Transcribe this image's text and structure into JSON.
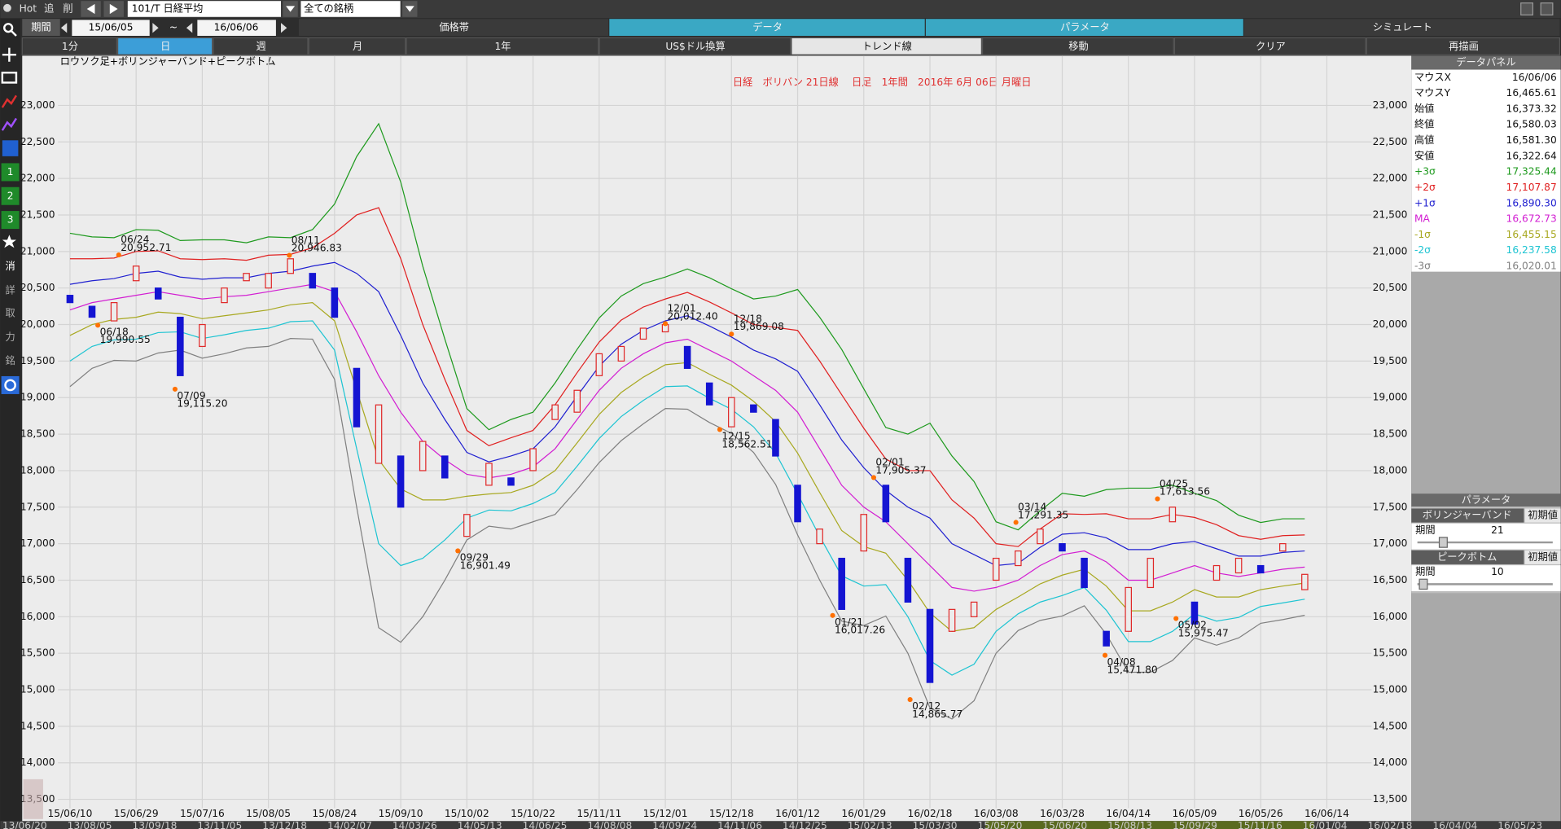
{
  "toolbar": {
    "hot": "Hot",
    "add": "追",
    "delete": "削",
    "symbol": "101/T 日経平均",
    "universe": "全ての銘柄",
    "period_label": "期間",
    "start": "15/06/05",
    "tilde": "~",
    "end": "16/06/06",
    "tabs": [
      "価格帯",
      "データ",
      "パラメータ",
      "シミュレート"
    ],
    "buttons": [
      "1分",
      "日",
      "週",
      "月",
      "1年",
      "US$ドル換算",
      "トレンド線",
      "移動",
      "クリア",
      "再描画"
    ]
  },
  "side_toolbar": [
    "1",
    "2",
    "3",
    "消",
    "詳",
    "取",
    "力",
    "銘"
  ],
  "chart_data": {
    "type": "candlestick",
    "title": "日経　ボリバン 21日線　 日足　1年間　2016年 6月 06日 月曜日",
    "subtitle": "ロウソク足+ボリンジャーバンド+ピークボトム",
    "categories": [
      "15/06/10",
      null,
      null,
      "15/06/29",
      null,
      null,
      "15/07/16",
      null,
      null,
      "15/08/05",
      null,
      null,
      "15/08/24",
      null,
      null,
      "15/09/10",
      null,
      null,
      "15/10/02",
      null,
      null,
      "15/10/22",
      null,
      null,
      "15/11/11",
      null,
      null,
      "15/12/01",
      null,
      null,
      "15/12/18",
      null,
      null,
      "16/01/12",
      null,
      null,
      "16/01/29",
      null,
      null,
      "16/02/18",
      null,
      null,
      "16/03/08",
      null,
      null,
      "16/03/28",
      null,
      null,
      "16/04/14",
      null,
      null,
      "16/05/09",
      null,
      null,
      "16/05/26",
      null,
      null,
      "16/06/14"
    ],
    "open": [
      20400,
      20250,
      20050,
      20600,
      20500,
      20100,
      19700,
      20300,
      20600,
      20500,
      20700,
      20700,
      20500,
      19400,
      18100,
      18200,
      18000,
      18200,
      17100,
      17800,
      17900,
      18000,
      18700,
      18800,
      19300,
      19500,
      19800,
      19900,
      19700,
      19200,
      18600,
      18900,
      18700,
      17800,
      17000,
      16800,
      16900,
      17800,
      16800,
      16100,
      15800,
      16000,
      16500,
      16700,
      17000,
      17000,
      16800,
      15800,
      15800,
      16400,
      17300,
      16200,
      16500,
      16600,
      16700,
      16900,
      16370,
      null
    ],
    "close": [
      20300,
      20100,
      20300,
      20800,
      20350,
      19300,
      20000,
      20500,
      20700,
      20700,
      20900,
      20500,
      20100,
      18600,
      18900,
      17500,
      18400,
      17900,
      17400,
      18100,
      17800,
      18300,
      18900,
      19100,
      19600,
      19700,
      19950,
      20000,
      19400,
      18900,
      19000,
      18800,
      18200,
      17300,
      17200,
      16100,
      17400,
      17300,
      16200,
      15100,
      16100,
      16200,
      16800,
      16900,
      17200,
      16900,
      16400,
      15600,
      16400,
      16800,
      17500,
      15900,
      16700,
      16800,
      16600,
      17000,
      16580,
      null
    ],
    "up_color": "#e02828",
    "down_color": "#1414d2",
    "series": [
      {
        "name": "+3σ",
        "color": "#1e9a1e",
        "values": [
          21250,
          21200,
          21190,
          21300,
          21290,
          21150,
          21160,
          21160,
          21120,
          21200,
          21190,
          21300,
          21650,
          22300,
          22750,
          21950,
          20800,
          19800,
          18850,
          18560,
          18700,
          18800,
          19200,
          19660,
          20090,
          20390,
          20560,
          20650,
          20760,
          20640,
          20490,
          20350,
          20390,
          20480,
          20100,
          19660,
          19120,
          18590,
          18500,
          18650,
          18200,
          17850,
          17300,
          17190,
          17450,
          17690,
          17650,
          17740,
          17760,
          17760,
          17800,
          17690,
          17590,
          17390,
          17290,
          17340,
          17340,
          null
        ]
      },
      {
        "name": "+2σ",
        "color": "#e02020",
        "values": [
          20900,
          20900,
          20910,
          21000,
          21010,
          20900,
          20890,
          20900,
          20880,
          20950,
          20960,
          21050,
          21250,
          21500,
          21600,
          20900,
          20000,
          19250,
          18550,
          18340,
          18450,
          18550,
          18900,
          19340,
          19760,
          20060,
          20240,
          20350,
          20440,
          20310,
          20160,
          20000,
          19960,
          19920,
          19500,
          19040,
          18580,
          18160,
          18000,
          18000,
          17600,
          17350,
          17000,
          16960,
          17200,
          17410,
          17400,
          17410,
          17340,
          17340,
          17400,
          17360,
          17260,
          17110,
          17060,
          17110,
          17120,
          null
        ]
      },
      {
        "name": "+1σ",
        "color": "#2020d0",
        "values": [
          20550,
          20600,
          20630,
          20700,
          20730,
          20650,
          20620,
          20640,
          20640,
          20700,
          20730,
          20800,
          20850,
          20700,
          20450,
          19850,
          19200,
          18700,
          18250,
          18120,
          18200,
          18300,
          18600,
          19020,
          19430,
          19730,
          19920,
          20050,
          20120,
          19980,
          19830,
          19650,
          19530,
          19360,
          18900,
          18420,
          18040,
          17730,
          17500,
          17350,
          17000,
          16850,
          16700,
          16730,
          16950,
          17130,
          17150,
          17080,
          16920,
          16920,
          17000,
          17030,
          16930,
          16830,
          16830,
          16880,
          16900,
          null
        ]
      },
      {
        "name": "MA",
        "color": "#d21ed2",
        "values": [
          20200,
          20300,
          20350,
          20400,
          20450,
          20400,
          20350,
          20380,
          20400,
          20450,
          20500,
          20550,
          20450,
          19900,
          19300,
          18800,
          18400,
          18150,
          17950,
          17900,
          17950,
          18050,
          18300,
          18700,
          19100,
          19400,
          19600,
          19750,
          19800,
          19650,
          19500,
          19300,
          19100,
          18800,
          18300,
          17800,
          17500,
          17300,
          17000,
          16700,
          16400,
          16350,
          16400,
          16500,
          16700,
          16850,
          16900,
          16750,
          16500,
          16500,
          16600,
          16700,
          16600,
          16550,
          16600,
          16650,
          16680,
          null
        ]
      },
      {
        "name": "-1σ",
        "color": "#a8a820",
        "values": [
          19850,
          20000,
          20070,
          20100,
          20170,
          20150,
          20080,
          20120,
          20160,
          20200,
          20270,
          20300,
          20050,
          19100,
          18150,
          17750,
          17600,
          17600,
          17650,
          17680,
          17700,
          17800,
          18000,
          18380,
          18770,
          19070,
          19280,
          19450,
          19480,
          19320,
          19170,
          18950,
          18670,
          18240,
          17700,
          17180,
          16960,
          16870,
          16500,
          16050,
          15800,
          15850,
          16100,
          16270,
          16450,
          16570,
          16650,
          16420,
          16080,
          16080,
          16200,
          16370,
          16270,
          16270,
          16370,
          16420,
          16460,
          null
        ]
      },
      {
        "name": "-2σ",
        "color": "#1ec4d2",
        "values": [
          19500,
          19700,
          19790,
          19800,
          19890,
          19900,
          19810,
          19860,
          19920,
          19950,
          20040,
          20050,
          19650,
          18300,
          17000,
          16700,
          16800,
          17050,
          17350,
          17460,
          17450,
          17550,
          17700,
          18060,
          18440,
          18740,
          18960,
          19150,
          19160,
          18990,
          18840,
          18600,
          18240,
          17680,
          17100,
          16560,
          16420,
          16440,
          16000,
          15400,
          15200,
          15350,
          15800,
          16040,
          16200,
          16290,
          16400,
          16090,
          15660,
          15660,
          15800,
          16040,
          15940,
          15990,
          16140,
          16190,
          16240,
          null
        ]
      },
      {
        "name": "-3σ",
        "color": "#808080",
        "values": [
          19150,
          19400,
          19510,
          19500,
          19610,
          19650,
          19540,
          19600,
          19680,
          19700,
          19810,
          19800,
          19250,
          17500,
          15850,
          15650,
          16000,
          16500,
          17050,
          17240,
          17200,
          17300,
          17400,
          17740,
          18110,
          18410,
          18640,
          18850,
          18840,
          18660,
          18510,
          18250,
          17810,
          17120,
          16500,
          15940,
          15880,
          16010,
          15500,
          14750,
          14600,
          14850,
          15500,
          15810,
          15950,
          16010,
          16150,
          15760,
          15240,
          15240,
          15400,
          15710,
          15610,
          15710,
          15910,
          15960,
          16020,
          null
        ]
      }
    ],
    "annotations": {
      "color": "#ff7000",
      "dates": [
        "06/24",
        "06/18",
        "07/09",
        "08/11",
        "09/29",
        "12/01",
        "12/18",
        "12/15",
        "02/01",
        "01/21",
        "02/12",
        "03/14",
        "04/08",
        "04/25",
        "05/02"
      ],
      "values": [
        20952.71,
        19990.55,
        19115.2,
        20946.83,
        16901.49,
        20012.4,
        19869.08,
        18562.51,
        17905.37,
        16017.26,
        14865.77,
        17291.35,
        15471.8,
        17613.56,
        15975.47
      ],
      "value_labels": [
        "20,952.71",
        "19,990.55",
        "19,115.20",
        "20,946.83",
        "16,901.49",
        "20,012.40",
        "19,869.08",
        "18,562.51",
        "17,905.37",
        "16,017.26",
        "14,865.77",
        "17,291.35",
        "15,471.80",
        "17,613.56",
        "15,975.47"
      ]
    },
    "ylim": [
      13380,
      23680
    ],
    "yticks": [
      {
        "value": 13500,
        "label": "13,500"
      },
      {
        "value": 14000,
        "label": "14,000"
      },
      {
        "value": 14500,
        "label": "14,500"
      },
      {
        "value": 15000,
        "label": "15,000"
      },
      {
        "value": 15500,
        "label": "15,500"
      },
      {
        "value": 16000,
        "label": "16,000"
      },
      {
        "value": 16500,
        "label": "16,500"
      },
      {
        "value": 17000,
        "label": "17,000"
      },
      {
        "value": 17500,
        "label": "17,500"
      },
      {
        "value": 18000,
        "label": "18,000"
      },
      {
        "value": 18500,
        "label": "18,500"
      },
      {
        "value": 19000,
        "label": "19,000"
      },
      {
        "value": 19500,
        "label": "19,500"
      },
      {
        "value": 20000,
        "label": "20,000"
      },
      {
        "value": 20500,
        "label": "20,500"
      },
      {
        "value": 21000,
        "label": "21,000"
      },
      {
        "value": 21500,
        "label": "21,500"
      },
      {
        "value": 22000,
        "label": "22,000"
      },
      {
        "value": 22500,
        "label": "22,500"
      },
      {
        "value": 23000,
        "label": "23,000"
      }
    ],
    "grid": true
  },
  "data_panel": {
    "title": "データパネル",
    "rows": [
      [
        "マウスX",
        "16/06/06"
      ],
      [
        "マウスY",
        "16,465.61"
      ],
      [
        "始値",
        "16,373.32"
      ],
      [
        "終値",
        "16,580.03"
      ],
      [
        "高値",
        "16,581.30"
      ],
      [
        "安値",
        "16,322.64"
      ]
    ],
    "band_values": [
      "17,325.44",
      "17,107.87",
      "16,890.30",
      "16,672.73",
      "16,455.15",
      "16,237.58",
      "16,020.01"
    ]
  },
  "parameter_panel": {
    "title": "パラメータ",
    "sections": [
      {
        "name": "ボリンジャーバンド",
        "reset": "初期値",
        "field": "期間",
        "value": "21"
      },
      {
        "name": "ピークボトム",
        "reset": "初期値",
        "field": "期間",
        "value": "10"
      }
    ]
  },
  "timeline": [
    "13/06/20",
    "13/08/05",
    "13/09/18",
    "13/11/05",
    "13/12/18",
    "14/02/07",
    "14/03/26",
    "14/05/13",
    "14/06/25",
    "14/08/08",
    "14/09/24",
    "14/11/06",
    "14/12/25",
    "15/02/13",
    "15/03/30",
    "15/05/20",
    "15/06/20",
    "15/08/13",
    "15/09/29",
    "15/11/16",
    "16/01/04",
    "16/02/18",
    "16/04/04",
    "16/05/23"
  ]
}
